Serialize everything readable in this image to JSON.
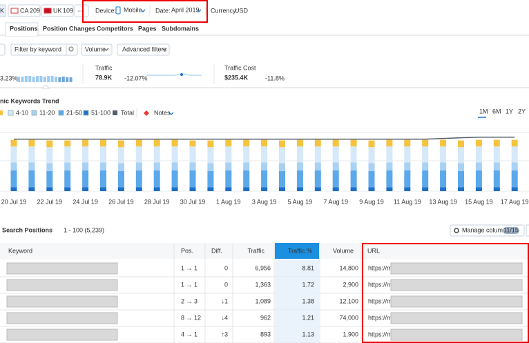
{
  "header": {
    "cut_tab": "K",
    "flags": [
      {
        "code": "CA",
        "count": "209"
      },
      {
        "code": "UK",
        "count": "109"
      }
    ],
    "more": "...",
    "device_label": "Device:",
    "device": "Mobile",
    "date_label": "Date:",
    "date": "April 2019",
    "currency_label": "Currency:",
    "currency": "USD"
  },
  "tabs": [
    "Positions",
    "Position Changes",
    "Competitors",
    "Pages",
    "Subdomains"
  ],
  "filters": {
    "keyword_placeholder": "Filter by keyword",
    "volume": "Volume",
    "advanced": "Advanced filters"
  },
  "metrics": [
    {
      "change": "3.23%",
      "bars": [
        8,
        8,
        9,
        9,
        8,
        9,
        9,
        8,
        9,
        9,
        8,
        7,
        8,
        7,
        7
      ]
    },
    {
      "label": "Traffic",
      "value": "78.9K",
      "change": "-12.07%",
      "trend": [
        10,
        10,
        10,
        10,
        10,
        10,
        10,
        10,
        10,
        10,
        10,
        11,
        11,
        12,
        11,
        10,
        10,
        10,
        10,
        10
      ]
    },
    {
      "label": "Traffic Cost",
      "value": "$235.4K",
      "change": "-11.8%"
    }
  ],
  "chart_data": {
    "type": "bar",
    "stacked": true,
    "title": "nic Keywords Trend",
    "ylim": [
      0,
      90
    ],
    "categories": [
      "20 Jul 19",
      null,
      "22 Jul 19",
      null,
      "24 Jul 19",
      null,
      "26 Jul 19",
      null,
      "28 Jul 19",
      null,
      "30 Jul 19",
      null,
      "1 Aug 19",
      null,
      "3 Aug 19",
      null,
      "5 Aug 19",
      null,
      "7 Aug 19",
      null,
      "9 Aug 19",
      null,
      "11 Aug 19",
      null,
      "13 Aug 19",
      null,
      "15 Aug 19",
      null,
      "17 Aug 19"
    ],
    "series": [
      {
        "name": "51-100",
        "color": "#1f6fc5",
        "values": [
          6,
          6,
          6,
          6,
          6,
          6,
          6,
          6,
          6,
          6,
          6,
          6,
          6,
          6,
          6,
          6,
          6,
          6,
          6,
          6,
          6,
          6,
          6,
          6,
          6,
          6,
          6,
          6,
          6
        ]
      },
      {
        "name": "21-50",
        "color": "#5ba8ea",
        "values": [
          25,
          25,
          24,
          25,
          25,
          25,
          24,
          25,
          25,
          25,
          25,
          24,
          25,
          25,
          25,
          24,
          25,
          25,
          25,
          25,
          24,
          25,
          25,
          25,
          25,
          24,
          25,
          25,
          25
        ]
      },
      {
        "name": "11-20",
        "color": "#a8d1f4",
        "values": [
          12,
          12,
          12,
          12,
          12,
          12,
          12,
          12,
          12,
          12,
          12,
          12,
          12,
          12,
          12,
          12,
          12,
          12,
          12,
          12,
          12,
          12,
          12,
          12,
          12,
          12,
          12,
          12,
          12
        ]
      },
      {
        "name": "4-10",
        "color": "#d6e9fa",
        "values": [
          24,
          24,
          24,
          24,
          24,
          24,
          24,
          24,
          24,
          24,
          24,
          24,
          24,
          24,
          24,
          24,
          24,
          24,
          24,
          24,
          24,
          24,
          24,
          24,
          24,
          24,
          24,
          24,
          24
        ]
      },
      {
        "color": "#f5c33f",
        "values": [
          10,
          10,
          10,
          9,
          10,
          10,
          10,
          10,
          10,
          10,
          9,
          10,
          10,
          10,
          10,
          10,
          10,
          10,
          10,
          10,
          10,
          10,
          10,
          10,
          10,
          10,
          10,
          10,
          10
        ]
      }
    ],
    "total": {
      "name": "Total",
      "color": "#555e6a",
      "values": [
        78,
        78,
        78,
        78,
        78,
        78,
        78,
        78,
        78,
        78,
        78,
        78,
        78,
        78,
        78,
        78,
        78,
        78,
        78,
        78,
        78,
        78,
        78,
        78,
        79,
        80,
        81,
        81,
        81
      ]
    },
    "notes": "Notes",
    "periods": [
      "1M",
      "6M",
      "1Y",
      "2Y"
    ]
  },
  "positions": {
    "title": "Search Positions",
    "range": "1 - 100 (5,239)",
    "manage": "Manage columns",
    "badge": "11/15",
    "columns": [
      "Keyword",
      "Pos.",
      "Diff.",
      "Traffic",
      "Traffic %",
      "Volume",
      "URL"
    ],
    "rows": [
      {
        "pos": "1 → 1",
        "diff": "0",
        "traffic": "6,956",
        "traffic_pct": "8.81",
        "volume": "14,800",
        "url": "https://m."
      },
      {
        "pos": "1 → 1",
        "diff": "0",
        "traffic": "1,363",
        "traffic_pct": "1.72",
        "volume": "2,900",
        "url": "https://m."
      },
      {
        "pos": "2 → 3",
        "diff": "↓1",
        "traffic": "1,089",
        "traffic_pct": "1.38",
        "volume": "12,100",
        "url": "https://m."
      },
      {
        "pos": "8 → 12",
        "diff": "↓4",
        "traffic": "962",
        "traffic_pct": "1.21",
        "volume": "74,000",
        "url": "https://m."
      },
      {
        "pos": "4 → 1",
        "diff": "↑3",
        "traffic": "893",
        "traffic_pct": "1.13",
        "volume": "1,900",
        "url": "https://m."
      }
    ]
  }
}
